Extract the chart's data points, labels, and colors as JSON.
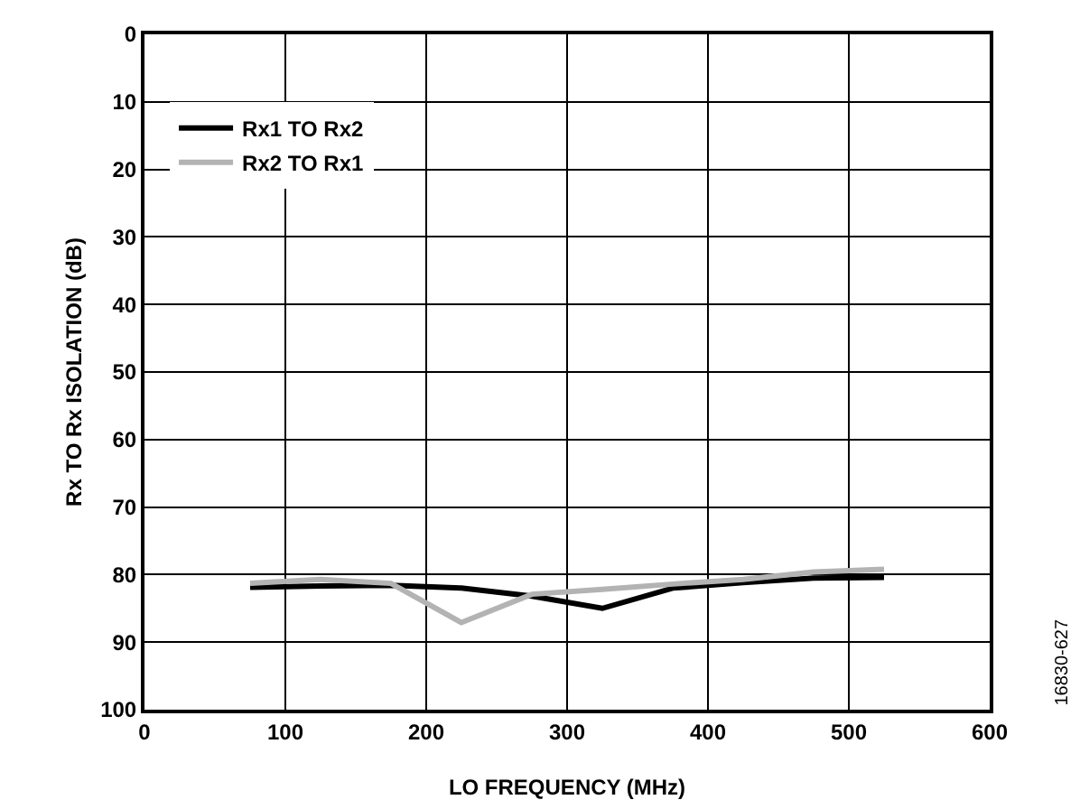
{
  "chart_data": {
    "type": "line",
    "xlabel": "LO FREQUENCY (MHz)",
    "ylabel": "Rx TO Rx ISOLATION (dB)",
    "x": [
      75,
      125,
      175,
      225,
      275,
      325,
      375,
      425,
      475,
      525
    ],
    "series": [
      {
        "name": "Rx1 TO Rx2",
        "color": "#000000",
        "values": [
          81.9,
          81.7,
          81.6,
          82,
          83.2,
          85,
          82,
          81.2,
          80.5,
          80.4
        ]
      },
      {
        "name": "Rx2 TO Rx1",
        "color": "#b3b3b3",
        "values": [
          81.3,
          80.7,
          81.3,
          87.1,
          82.9,
          82.2,
          81.4,
          80.7,
          79.6,
          79.2
        ]
      }
    ],
    "xlim": [
      0,
      600
    ],
    "xticks": [
      0,
      100,
      200,
      300,
      400,
      500,
      600
    ],
    "ylim": [
      100,
      0
    ],
    "yticks": [
      0,
      10,
      20,
      30,
      40,
      50,
      60,
      70,
      80,
      90,
      100
    ],
    "grid": true,
    "legend": "top left",
    "marker": "none",
    "line_style": "solid",
    "annotations": [
      "16830-627"
    ]
  }
}
